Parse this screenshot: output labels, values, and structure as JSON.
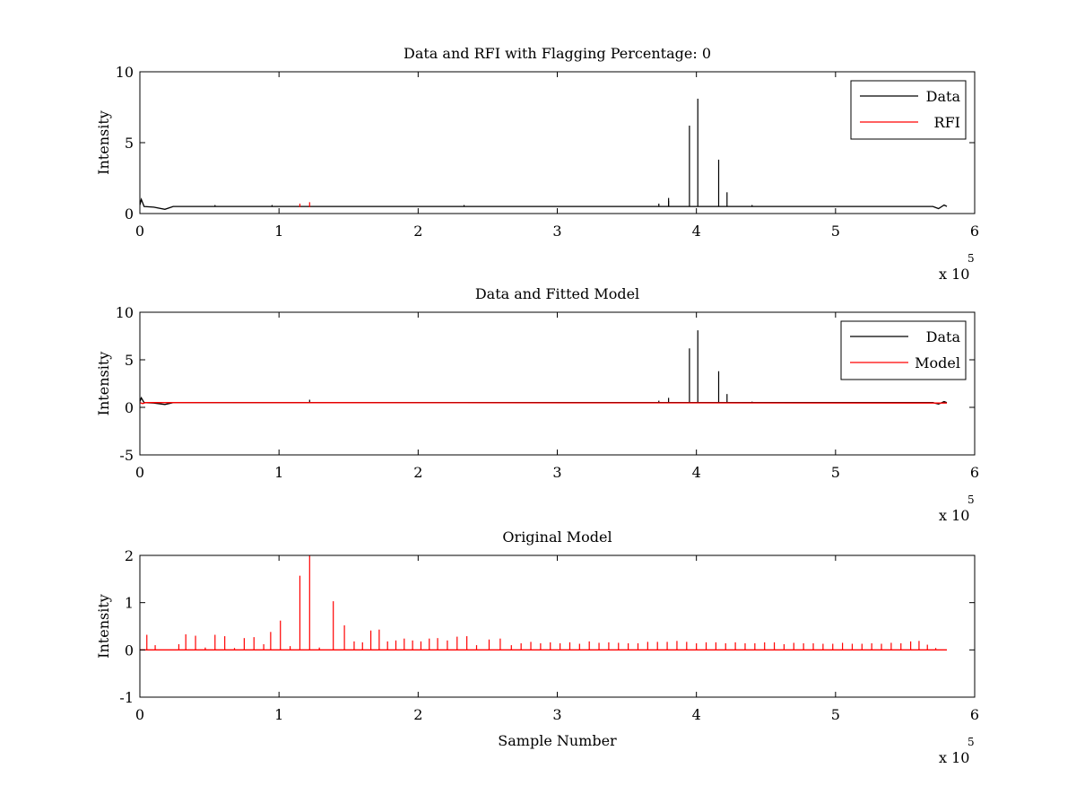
{
  "chart_data": [
    {
      "type": "line",
      "title": "Data and RFI with Flagging Percentage: 0",
      "xlabel": "",
      "ylabel": "Intensity",
      "xlim": [
        0,
        600000
      ],
      "ylim": [
        0,
        10
      ],
      "xticks": [
        0,
        1,
        2,
        3,
        4,
        5,
        6
      ],
      "yticks": [
        0,
        5,
        10
      ],
      "x_multiplier": "x 10",
      "x_multiplier_exp": "5",
      "legend": "top-right",
      "grid": false,
      "series": [
        {
          "name": "Data",
          "color": "#000000",
          "baseline": [
            [
              0,
              0.6
            ],
            [
              1000,
              1.0
            ],
            [
              3000,
              0.5
            ],
            [
              10000,
              0.45
            ],
            [
              18000,
              0.3
            ],
            [
              24000,
              0.5
            ],
            [
              30000,
              0.5
            ],
            [
              570000,
              0.5
            ],
            [
              574000,
              0.35
            ],
            [
              578000,
              0.6
            ],
            [
              580000,
              0.5
            ]
          ],
          "spikes": [
            [
              395000,
              6.2
            ],
            [
              401000,
              8.1
            ],
            [
              416000,
              3.8
            ],
            [
              422000,
              1.5
            ],
            [
              380000,
              1.1
            ],
            [
              373000,
              0.7
            ],
            [
              440000,
              0.6
            ],
            [
              54000,
              0.6
            ],
            [
              95000,
              0.6
            ],
            [
              233000,
              0.6
            ],
            [
              380000,
              0.9
            ]
          ]
        },
        {
          "name": "RFI",
          "color": "#ff0000",
          "baseline": [],
          "spikes": [
            [
              115000,
              0.7
            ],
            [
              122000,
              0.8
            ]
          ]
        }
      ]
    },
    {
      "type": "line",
      "title": "Data and Fitted Model",
      "xlabel": "",
      "ylabel": "Intensity",
      "xlim": [
        0,
        600000
      ],
      "ylim": [
        -5,
        10
      ],
      "xticks": [
        0,
        1,
        2,
        3,
        4,
        5,
        6
      ],
      "yticks": [
        -5,
        0,
        5,
        10
      ],
      "x_multiplier": "x 10",
      "x_multiplier_exp": "5",
      "legend": "top-right",
      "grid": false,
      "series": [
        {
          "name": "Data",
          "color": "#000000",
          "baseline": [
            [
              0,
              0.6
            ],
            [
              1000,
              1.0
            ],
            [
              3000,
              0.5
            ],
            [
              10000,
              0.45
            ],
            [
              18000,
              0.3
            ],
            [
              24000,
              0.5
            ],
            [
              30000,
              0.5
            ],
            [
              570000,
              0.5
            ],
            [
              574000,
              0.35
            ],
            [
              578000,
              0.6
            ],
            [
              580000,
              0.5
            ]
          ],
          "spikes": [
            [
              395000,
              6.2
            ],
            [
              401000,
              8.1
            ],
            [
              416000,
              3.8
            ],
            [
              422000,
              1.4
            ],
            [
              380000,
              1.0
            ],
            [
              373000,
              0.7
            ],
            [
              440000,
              0.6
            ],
            [
              122000,
              0.8
            ]
          ]
        },
        {
          "name": "Model",
          "color": "#ff0000",
          "baseline": [
            [
              0,
              0.5
            ],
            [
              2000,
              0.4
            ],
            [
              4000,
              0.5
            ],
            [
              580000,
              0.45
            ]
          ],
          "spikes": []
        }
      ]
    },
    {
      "type": "line",
      "title": "Original Model",
      "xlabel": "Sample Number",
      "ylabel": "Intensity",
      "xlim": [
        0,
        600000
      ],
      "ylim": [
        -1,
        2
      ],
      "xticks": [
        0,
        1,
        2,
        3,
        4,
        5,
        6
      ],
      "yticks": [
        -1,
        0,
        1,
        2
      ],
      "x_multiplier": "x 10",
      "x_multiplier_exp": "5",
      "legend": "none",
      "grid": false,
      "series": [
        {
          "name": "",
          "color": "#ff0000",
          "baseline": [
            [
              0,
              0.0
            ],
            [
              580000,
              0.0
            ]
          ],
          "spikes": [
            [
              5000,
              0.32
            ],
            [
              11000,
              0.1
            ],
            [
              28000,
              0.12
            ],
            [
              33000,
              0.33
            ],
            [
              40000,
              0.3
            ],
            [
              47000,
              0.05
            ],
            [
              54000,
              0.32
            ],
            [
              61000,
              0.29
            ],
            [
              68000,
              0.04
            ],
            [
              75000,
              0.25
            ],
            [
              82000,
              0.27
            ],
            [
              89000,
              0.12
            ],
            [
              94000,
              0.38
            ],
            [
              101000,
              0.62
            ],
            [
              108000,
              0.08
            ],
            [
              115000,
              1.57
            ],
            [
              122000,
              2.0
            ],
            [
              129000,
              0.05
            ],
            [
              139000,
              1.03
            ],
            [
              147000,
              0.52
            ],
            [
              154000,
              0.18
            ],
            [
              160000,
              0.16
            ],
            [
              166000,
              0.41
            ],
            [
              172000,
              0.43
            ],
            [
              178000,
              0.18
            ],
            [
              184000,
              0.2
            ],
            [
              190000,
              0.24
            ],
            [
              196000,
              0.2
            ],
            [
              202000,
              0.18
            ],
            [
              208000,
              0.24
            ],
            [
              214000,
              0.25
            ],
            [
              221000,
              0.2
            ],
            [
              228000,
              0.28
            ],
            [
              235000,
              0.29
            ],
            [
              242000,
              0.1
            ],
            [
              251000,
              0.22
            ],
            [
              259000,
              0.24
            ],
            [
              267000,
              0.1
            ],
            [
              274000,
              0.14
            ],
            [
              281000,
              0.17
            ],
            [
              288000,
              0.14
            ],
            [
              295000,
              0.16
            ],
            [
              302000,
              0.14
            ],
            [
              309000,
              0.16
            ],
            [
              316000,
              0.13
            ],
            [
              323000,
              0.18
            ],
            [
              330000,
              0.15
            ],
            [
              337000,
              0.16
            ],
            [
              344000,
              0.15
            ],
            [
              351000,
              0.14
            ],
            [
              358000,
              0.14
            ],
            [
              365000,
              0.17
            ],
            [
              372000,
              0.17
            ],
            [
              379000,
              0.17
            ],
            [
              386000,
              0.19
            ],
            [
              393000,
              0.17
            ],
            [
              400000,
              0.14
            ],
            [
              407000,
              0.16
            ],
            [
              414000,
              0.16
            ],
            [
              421000,
              0.14
            ],
            [
              428000,
              0.16
            ],
            [
              435000,
              0.14
            ],
            [
              442000,
              0.14
            ],
            [
              449000,
              0.16
            ],
            [
              456000,
              0.16
            ],
            [
              463000,
              0.12
            ],
            [
              470000,
              0.15
            ],
            [
              477000,
              0.14
            ],
            [
              484000,
              0.14
            ],
            [
              491000,
              0.13
            ],
            [
              498000,
              0.13
            ],
            [
              505000,
              0.15
            ],
            [
              512000,
              0.13
            ],
            [
              519000,
              0.13
            ],
            [
              526000,
              0.14
            ],
            [
              533000,
              0.13
            ],
            [
              540000,
              0.15
            ],
            [
              547000,
              0.14
            ],
            [
              554000,
              0.18
            ],
            [
              560000,
              0.19
            ],
            [
              566000,
              0.11
            ],
            [
              572000,
              0.04
            ]
          ]
        }
      ]
    }
  ]
}
